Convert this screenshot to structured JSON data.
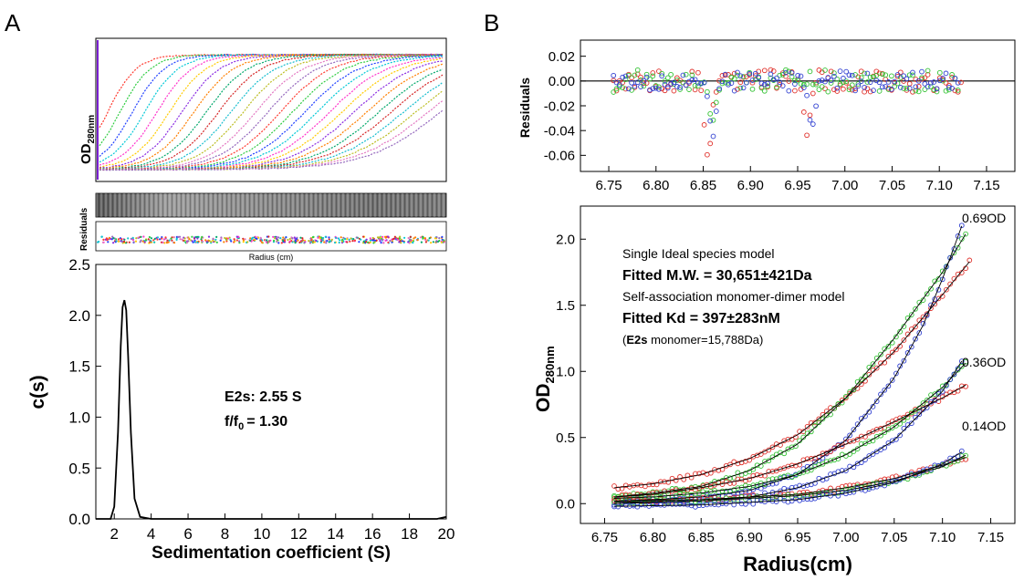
{
  "panel_a": {
    "letter": "A",
    "top": {
      "ylabel_main": "OD",
      "ylabel_sub": "280nm",
      "x_start": 6.58,
      "x_end": 7.2,
      "curve_count": 28
    },
    "residual_map": {
      "ylabel": "Residuals"
    },
    "residual_dots": {
      "xlabel": "Radius (cm)"
    },
    "distribution": {
      "annotation_line1": "E2s: 2.55 S",
      "annotation_line2_a": "f/f",
      "annotation_line2_sub": "0",
      "annotation_line2_b": "= 1.30"
    }
  },
  "panel_b": {
    "letter": "B",
    "residuals": {
      "ylabel": "Residuals"
    },
    "equilibrium": {
      "ylabel_main": "OD",
      "ylabel_sub": "280nm",
      "model_line1": "Single Ideal species model",
      "model_line2": "Fitted M.W. = 30,651±421Da",
      "model_line3": "Self-association monomer-dimer model",
      "model_line4": "Fitted Kd = 397±283nM",
      "model_line5_a": "(",
      "model_line5_b": "E2s",
      "model_line5_c": " monomer=15,788Da)",
      "label_069": "0.69OD",
      "label_036": "0.36OD",
      "label_014": "0.14OD"
    }
  },
  "colors": {
    "red": "#e0302a",
    "green": "#33c233",
    "blue": "#2f3fd1",
    "black": "#000000"
  },
  "chart_data": [
    {
      "type": "line",
      "title": "",
      "xlabel": "Sedimentation coefficient (S)",
      "ylabel": "c(s)",
      "xlim": [
        1,
        20
      ],
      "ylim": [
        0,
        2.5
      ],
      "x_ticks": [
        2,
        4,
        6,
        8,
        10,
        12,
        14,
        16,
        18,
        20
      ],
      "y_ticks": [
        0.0,
        0.5,
        1.0,
        1.5,
        2.0,
        2.5
      ],
      "x_tick_labels": [
        "2",
        "4",
        "6",
        "8",
        "10",
        "12",
        "14",
        "16",
        "18",
        "20"
      ],
      "y_tick_labels": [
        "0.0",
        "0.5",
        "1.0",
        "1.5",
        "2.0",
        "2.5"
      ],
      "x": [
        1.0,
        1.8,
        2.0,
        2.2,
        2.35,
        2.45,
        2.55,
        2.65,
        2.75,
        2.9,
        3.1,
        3.4,
        4.0,
        6.0,
        10.0,
        15.0,
        19.5,
        20.0
      ],
      "values": [
        0.0,
        0.0,
        0.12,
        0.85,
        1.7,
        2.08,
        2.15,
        2.05,
        1.6,
        0.85,
        0.2,
        0.02,
        0.0,
        0.0,
        0.0,
        0.0,
        0.0,
        0.02
      ],
      "series": [
        {
          "name": "",
          "color": "#000000"
        }
      ]
    },
    {
      "type": "scatter",
      "title": "",
      "xlabel": "",
      "ylabel": "Residuals",
      "xlim": [
        6.72,
        7.18
      ],
      "ylim": [
        -0.073,
        0.033
      ],
      "x_ticks": [
        6.75,
        6.8,
        6.85,
        6.9,
        6.95,
        7.0,
        7.05,
        7.1,
        7.15
      ],
      "y_ticks": [
        0.02,
        0.0,
        -0.02,
        -0.04,
        -0.06
      ],
      "x_tick_labels": [
        "6.75",
        "6.80",
        "6.85",
        "6.90",
        "6.95",
        "7.00",
        "7.05",
        "7.10",
        "7.15"
      ],
      "y_tick_labels": [
        "0.02",
        "0.00",
        "-0.02",
        "-0.04",
        "-0.06"
      ],
      "series": [
        {
          "name": "",
          "marker": "circle",
          "color": "#e0302a",
          "x_range": [
            6.755,
            7.125
          ],
          "spread": 0.009,
          "dips": [
            {
              "x": 6.855,
              "min": -0.068
            },
            {
              "x": 6.96,
              "min": -0.045
            }
          ]
        },
        {
          "name": "",
          "marker": "circle",
          "color": "#33c233",
          "x_range": [
            6.755,
            7.12
          ],
          "spread": 0.009,
          "dips": [
            {
              "x": 6.86,
              "min": -0.035
            }
          ]
        },
        {
          "name": "",
          "marker": "circle",
          "color": "#2f3fd1",
          "x_range": [
            6.755,
            7.12
          ],
          "spread": 0.008,
          "dips": [
            {
              "x": 6.86,
              "min": -0.05
            },
            {
              "x": 6.965,
              "min": -0.04
            }
          ]
        }
      ]
    },
    {
      "type": "scatter",
      "title": "",
      "xlabel": "Radius(cm)",
      "ylabel": "OD280nm",
      "xlim": [
        6.725,
        7.175
      ],
      "ylim": [
        -0.15,
        2.25
      ],
      "x_ticks": [
        6.75,
        6.8,
        6.85,
        6.9,
        6.95,
        7.0,
        7.05,
        7.1,
        7.15
      ],
      "y_ticks": [
        0.0,
        0.5,
        1.0,
        1.5,
        2.0
      ],
      "x_tick_labels": [
        "6.75",
        "6.80",
        "6.85",
        "6.90",
        "6.95",
        "7.00",
        "7.05",
        "7.10",
        "7.15"
      ],
      "y_tick_labels": [
        "0.0",
        "0.5",
        "1.0",
        "1.5",
        "2.0"
      ],
      "series": [
        {
          "name": "",
          "color": "#e0302a",
          "x": [
            6.76,
            6.8,
            6.85,
            6.9,
            6.95,
            7.0,
            7.05,
            7.1,
            7.128
          ],
          "y": [
            0.12,
            0.15,
            0.22,
            0.34,
            0.52,
            0.8,
            1.15,
            1.58,
            1.83
          ]
        },
        {
          "name": "",
          "color": "#33c233",
          "x": [
            6.76,
            6.8,
            6.85,
            6.9,
            6.95,
            7.0,
            7.05,
            7.1,
            7.125
          ],
          "y": [
            0.05,
            0.08,
            0.13,
            0.25,
            0.45,
            0.8,
            1.25,
            1.75,
            2.05
          ]
        },
        {
          "name": "",
          "color": "#2f3fd1",
          "x": [
            6.76,
            6.8,
            6.85,
            6.9,
            6.95,
            7.0,
            7.05,
            7.08,
            7.1,
            7.12
          ],
          "y": [
            0.02,
            0.03,
            0.05,
            0.1,
            0.22,
            0.48,
            0.95,
            1.35,
            1.7,
            2.1
          ]
        },
        {
          "name": "",
          "color": "#e0302a",
          "x": [
            6.76,
            6.8,
            6.85,
            6.9,
            6.95,
            7.0,
            7.05,
            7.1,
            7.125
          ],
          "y": [
            0.05,
            0.07,
            0.12,
            0.19,
            0.3,
            0.45,
            0.62,
            0.8,
            0.9
          ]
        },
        {
          "name": "",
          "color": "#33c233",
          "x": [
            6.76,
            6.8,
            6.85,
            6.9,
            6.95,
            7.0,
            7.05,
            7.1,
            7.125
          ],
          "y": [
            0.04,
            0.05,
            0.08,
            0.13,
            0.22,
            0.37,
            0.58,
            0.88,
            1.07
          ]
        },
        {
          "name": "",
          "color": "#2f3fd1",
          "x": [
            6.76,
            6.8,
            6.85,
            6.9,
            6.95,
            7.0,
            7.05,
            7.1,
            7.122
          ],
          "y": [
            0.0,
            0.01,
            0.02,
            0.05,
            0.12,
            0.25,
            0.48,
            0.85,
            1.1
          ]
        },
        {
          "name": "",
          "color": "#e0302a",
          "x": [
            6.76,
            6.85,
            6.95,
            7.0,
            7.05,
            7.1,
            7.125
          ],
          "y": [
            0.02,
            0.03,
            0.07,
            0.12,
            0.19,
            0.29,
            0.35
          ]
        },
        {
          "name": "",
          "color": "#33c233",
          "x": [
            6.76,
            6.85,
            6.95,
            7.0,
            7.05,
            7.1,
            7.125
          ],
          "y": [
            0.01,
            0.02,
            0.06,
            0.1,
            0.17,
            0.28,
            0.37
          ]
        },
        {
          "name": "",
          "color": "#2f3fd1",
          "x": [
            6.76,
            6.85,
            6.95,
            7.0,
            7.05,
            7.1,
            7.122
          ],
          "y": [
            -0.02,
            -0.01,
            0.03,
            0.08,
            0.16,
            0.3,
            0.4
          ]
        }
      ]
    }
  ]
}
